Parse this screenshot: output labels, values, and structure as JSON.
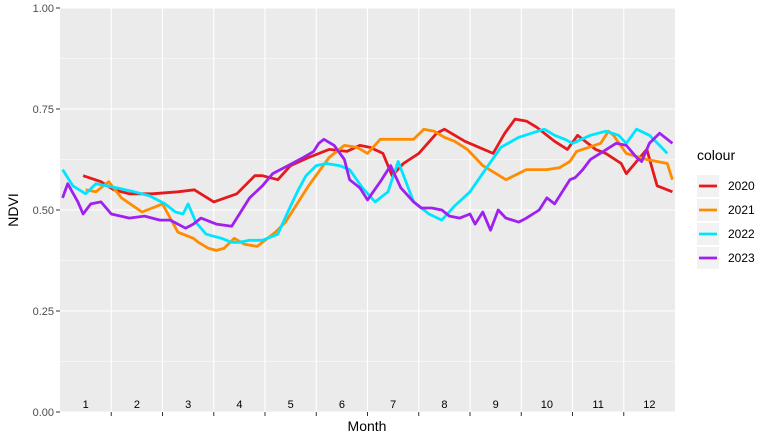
{
  "chart_data": {
    "type": "line",
    "title": "",
    "xlabel": "Month",
    "ylabel": "NDVI",
    "xlim": [
      0.5,
      12.5
    ],
    "ylim": [
      0,
      1
    ],
    "y_ticks": [
      "0.00",
      "0.25",
      "0.50",
      "0.75",
      "1.00"
    ],
    "y_tick_values": [
      0,
      0.25,
      0.5,
      0.75,
      1
    ],
    "x_ticks": [
      "1",
      "2",
      "3",
      "4",
      "5",
      "6",
      "7",
      "8",
      "9",
      "10",
      "11",
      "12"
    ],
    "x_tick_values": [
      1,
      2,
      3,
      4,
      5,
      6,
      7,
      8,
      9,
      10,
      11,
      12
    ],
    "grid": true,
    "legend": {
      "title": "colour",
      "position": "right"
    },
    "series": [
      {
        "name": "2020",
        "color": "#e41a1c",
        "x": [
          0.95,
          1.3,
          1.55,
          1.85,
          2.3,
          2.8,
          3.12,
          3.5,
          3.95,
          4.3,
          4.45,
          4.75,
          5.0,
          5.35,
          5.75,
          6.1,
          6.35,
          6.55,
          6.8,
          6.98,
          7.2,
          7.5,
          7.85,
          8.0,
          8.4,
          8.95,
          9.18,
          9.38,
          9.6,
          9.8,
          10.15,
          10.4,
          10.6,
          10.95,
          11.15,
          11.45,
          11.55,
          11.95,
          12.15,
          12.45
        ],
        "y": [
          0.585,
          0.57,
          0.55,
          0.54,
          0.54,
          0.545,
          0.55,
          0.52,
          0.54,
          0.585,
          0.585,
          0.575,
          0.61,
          0.63,
          0.65,
          0.645,
          0.66,
          0.655,
          0.64,
          0.585,
          0.615,
          0.64,
          0.69,
          0.7,
          0.67,
          0.64,
          0.69,
          0.725,
          0.72,
          0.705,
          0.67,
          0.65,
          0.685,
          0.65,
          0.64,
          0.615,
          0.59,
          0.65,
          0.56,
          0.545
        ]
      },
      {
        "name": "2021",
        "color": "#ff8c00",
        "x": [
          1.0,
          1.2,
          1.45,
          1.7,
          2.1,
          2.3,
          2.5,
          2.8,
          3.1,
          3.2,
          3.4,
          3.55,
          3.7,
          3.9,
          4.1,
          4.35,
          4.7,
          4.9,
          5.05,
          5.35,
          5.75,
          6.05,
          6.3,
          6.5,
          6.75,
          7.1,
          7.4,
          7.6,
          7.8,
          8.0,
          8.2,
          8.45,
          8.75,
          9.2,
          9.6,
          10.0,
          10.25,
          10.45,
          10.58,
          11.05,
          11.2,
          11.3,
          11.55,
          11.95,
          12.35,
          12.45
        ],
        "y": [
          0.55,
          0.545,
          0.57,
          0.53,
          0.495,
          0.505,
          0.515,
          0.445,
          0.43,
          0.42,
          0.405,
          0.4,
          0.405,
          0.43,
          0.415,
          0.41,
          0.445,
          0.47,
          0.5,
          0.56,
          0.63,
          0.66,
          0.655,
          0.64,
          0.675,
          0.675,
          0.675,
          0.7,
          0.695,
          0.68,
          0.67,
          0.65,
          0.61,
          0.575,
          0.6,
          0.6,
          0.605,
          0.62,
          0.645,
          0.665,
          0.695,
          0.685,
          0.64,
          0.625,
          0.615,
          0.575
        ]
      },
      {
        "name": "2022",
        "color": "#00e5ff",
        "x": [
          0.55,
          0.75,
          1.0,
          1.2,
          1.6,
          1.95,
          2.25,
          2.55,
          2.75,
          2.9,
          3.0,
          3.15,
          3.35,
          3.65,
          3.85,
          4.0,
          4.2,
          4.45,
          4.75,
          5.0,
          5.15,
          5.3,
          5.5,
          5.7,
          5.95,
          6.15,
          6.4,
          6.65,
          6.9,
          7.1,
          7.4,
          7.7,
          7.95,
          8.2,
          8.5,
          8.8,
          9.1,
          9.45,
          9.95,
          10.15,
          10.35,
          10.5,
          10.85,
          11.15,
          11.4,
          11.55,
          11.75,
          12.0,
          12.2,
          12.35
        ],
        "y": [
          0.6,
          0.56,
          0.54,
          0.565,
          0.555,
          0.545,
          0.535,
          0.515,
          0.495,
          0.49,
          0.515,
          0.47,
          0.44,
          0.43,
          0.42,
          0.42,
          0.425,
          0.425,
          0.44,
          0.51,
          0.55,
          0.585,
          0.61,
          0.615,
          0.61,
          0.6,
          0.555,
          0.52,
          0.545,
          0.62,
          0.52,
          0.49,
          0.475,
          0.51,
          0.545,
          0.6,
          0.655,
          0.68,
          0.7,
          0.685,
          0.675,
          0.665,
          0.685,
          0.695,
          0.685,
          0.665,
          0.7,
          0.685,
          0.66,
          0.64
        ]
      },
      {
        "name": "2023",
        "color": "#a020f0",
        "x": [
          0.55,
          0.65,
          0.85,
          0.95,
          1.1,
          1.3,
          1.5,
          1.85,
          2.15,
          2.45,
          2.65,
          2.8,
          2.95,
          3.1,
          3.25,
          3.55,
          3.85,
          4.2,
          4.45,
          4.65,
          4.95,
          5.25,
          5.45,
          5.55,
          5.65,
          5.85,
          6.05,
          6.15,
          6.35,
          6.5,
          6.75,
          6.95,
          7.15,
          7.4,
          7.55,
          7.75,
          7.95,
          8.1,
          8.3,
          8.5,
          8.6,
          8.75,
          8.9,
          9.05,
          9.2,
          9.45,
          9.6,
          9.85,
          10.0,
          10.15,
          10.3,
          10.45,
          10.55,
          10.7,
          10.85,
          11.1,
          11.35,
          11.55,
          11.75,
          11.85,
          12.0,
          12.2,
          12.45
        ],
        "y": [
          0.53,
          0.565,
          0.52,
          0.49,
          0.515,
          0.52,
          0.49,
          0.48,
          0.485,
          0.475,
          0.475,
          0.465,
          0.455,
          0.465,
          0.48,
          0.465,
          0.46,
          0.53,
          0.56,
          0.59,
          0.61,
          0.63,
          0.645,
          0.665,
          0.675,
          0.66,
          0.625,
          0.575,
          0.555,
          0.525,
          0.57,
          0.61,
          0.555,
          0.52,
          0.505,
          0.505,
          0.5,
          0.485,
          0.48,
          0.49,
          0.465,
          0.495,
          0.45,
          0.5,
          0.48,
          0.47,
          0.48,
          0.5,
          0.53,
          0.515,
          0.545,
          0.575,
          0.58,
          0.6,
          0.625,
          0.645,
          0.665,
          0.66,
          0.63,
          0.62,
          0.665,
          0.69,
          0.665
        ]
      }
    ]
  }
}
